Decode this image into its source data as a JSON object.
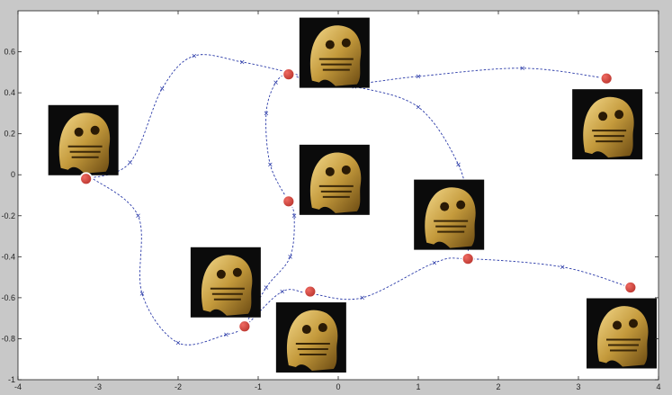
{
  "chart_data": {
    "type": "scatter",
    "xlim": [
      -4,
      4
    ],
    "ylim": [
      -1,
      0.8
    ],
    "xticks": [
      -4,
      -3,
      -2,
      -1,
      0,
      1,
      2,
      3,
      4
    ],
    "yticks": [
      -1,
      -0.8,
      -0.6,
      -0.4,
      -0.2,
      0,
      0.2,
      0.4,
      0.6
    ],
    "xtick_labels": [
      "-4",
      "-3",
      "-2",
      "-1",
      "0",
      "1",
      "2",
      "3",
      "4"
    ],
    "ytick_labels": [
      "-1",
      "-0.8",
      "-0.6",
      "-0.4",
      "-0.2",
      "0",
      "0.2",
      "0.4",
      "0.6"
    ],
    "grid": false,
    "line_color": "#2a3aa8",
    "marker_color": "#d0423a",
    "series": [
      {
        "points": [
          [
            -3.15,
            -0.02
          ],
          [
            -2.6,
            0.06
          ],
          [
            -2.2,
            0.42
          ],
          [
            -1.8,
            0.58
          ],
          [
            -1.2,
            0.55
          ],
          [
            -0.62,
            0.5
          ],
          [
            0,
            0.44
          ],
          [
            1,
            0.48
          ],
          [
            2.3,
            0.52
          ],
          [
            3.35,
            0.47
          ]
        ]
      },
      {
        "points": [
          [
            -3.1,
            -0.01
          ],
          [
            -2.5,
            -0.2
          ],
          [
            -2.45,
            -0.58
          ],
          [
            -2,
            -0.82
          ],
          [
            -1.4,
            -0.78
          ],
          [
            -1.17,
            -0.74
          ],
          [
            -0.7,
            -0.57
          ],
          [
            -0.35,
            -0.58
          ],
          [
            0.3,
            -0.6
          ],
          [
            1.2,
            -0.43
          ],
          [
            1.62,
            -0.41
          ],
          [
            2.8,
            -0.45
          ],
          [
            3.65,
            -0.55
          ]
        ]
      },
      {
        "points": [
          [
            -0.62,
            -0.13
          ],
          [
            -0.85,
            0.05
          ],
          [
            -0.9,
            0.3
          ],
          [
            -0.78,
            0.45
          ],
          [
            -0.6,
            0.49
          ],
          [
            -0.3,
            0.44
          ],
          [
            0.2,
            0.43
          ],
          [
            1,
            0.33
          ],
          [
            1.5,
            0.05
          ],
          [
            1.62,
            -0.18
          ],
          [
            1.62,
            -0.41
          ]
        ]
      },
      {
        "points": [
          [
            -1.17,
            -0.74
          ],
          [
            -0.9,
            -0.55
          ],
          [
            -0.6,
            -0.4
          ],
          [
            -0.55,
            -0.2
          ],
          [
            -0.62,
            -0.13
          ]
        ]
      }
    ],
    "keyframes": [
      {
        "x": -3.15,
        "y": -0.02,
        "thumb": "left"
      },
      {
        "x": -0.62,
        "y": 0.49,
        "thumb": "right"
      },
      {
        "x": 3.35,
        "y": 0.47,
        "thumb": "below"
      },
      {
        "x": -0.62,
        "y": -0.13,
        "thumb": "right"
      },
      {
        "x": 1.62,
        "y": -0.41,
        "thumb": "above"
      },
      {
        "x": -1.17,
        "y": -0.74,
        "thumb": "above"
      },
      {
        "x": -0.35,
        "y": -0.57,
        "thumb": "below"
      },
      {
        "x": 3.65,
        "y": -0.55,
        "thumb": "below"
      }
    ]
  }
}
